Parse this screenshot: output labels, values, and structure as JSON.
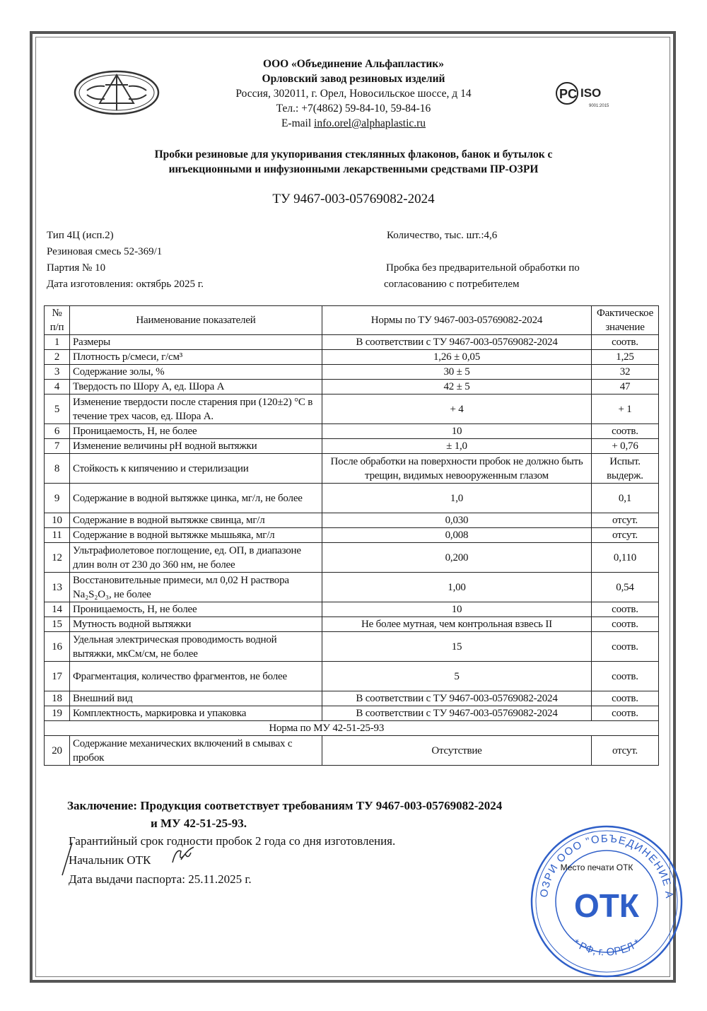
{
  "header": {
    "company": "ООО «Объединение Альфапластик»",
    "plant": "Орловский завод резиновых изделий",
    "address": "Россия, 302011, г. Орел, Новосильское шоссе, д 14",
    "phone": "Тел.: +7(4862) 59-84-10, 59-84-16",
    "email_label": "E-mail ",
    "email": "info.orel@alphaplastic.ru",
    "iso_logo": {
      "text": "ISO",
      "sub": "9001:2015"
    }
  },
  "product_title": {
    "line1": "Пробки резиновые для укупоривания стеклянных флаконов, банок и бутылок с",
    "line2": "инъекционными и инфузионными лекарственными средствами ПР-ОЗРИ"
  },
  "spec": "ТУ 9467-003-05769082-2024",
  "meta": {
    "type": "Тип 4Ц (исп.2)",
    "mix": "Резиновая смесь 52-369/1",
    "batch": "Партия № 10",
    "date": "Дата изготовления: октябрь  2025 г.",
    "quantity": "Количество, тыс. шт.:4,6",
    "note_line1": "Пробка без предварительной обработки по",
    "note_line2": "согласованию с потребителем"
  },
  "table": {
    "headers": {
      "num_line1": "№",
      "num_line2": "п/п",
      "name": "Наименование показателей",
      "norm": "Нормы по ТУ 9467-003-05769082-2024",
      "actual_line1": "Фактическое",
      "actual_line2": "значение"
    },
    "rows": [
      {
        "n": "1",
        "name": "Размеры",
        "norm": "В соответствии с ТУ 9467-003-05769082-2024",
        "actual": "соотв."
      },
      {
        "n": "2",
        "name": "Плотность р/смеси, г/см³",
        "norm": "1,26 ± 0,05",
        "actual": "1,25"
      },
      {
        "n": "3",
        "name": "Содержание золы, %",
        "norm": "30 ± 5",
        "actual": "32"
      },
      {
        "n": "4",
        "name": "Твердость по Шору А, ед. Шора А",
        "norm": "42 ± 5",
        "actual": "47"
      },
      {
        "n": "5",
        "name": "Изменение твердости после старения при (120±2) °С в течение трех часов, ед. Шора А.",
        "norm": "+ 4",
        "actual": "+ 1"
      },
      {
        "n": "6",
        "name": "Проницаемость, Н, не более",
        "norm": "10",
        "actual": "соотв."
      },
      {
        "n": "7",
        "name": "Изменение величины pH водной вытяжки",
        "norm": "± 1,0",
        "actual": "+ 0,76"
      },
      {
        "n": "8",
        "name": "Стойкость к кипячению и стерилизации",
        "norm": "После обработки на поверхности пробок не должно быть трещин, видимых невооруженным глазом",
        "actual": "Испыт. выдерж."
      },
      {
        "n": "9",
        "name": "Содержание в водной вытяжке цинка, мг/л, не более",
        "norm": "1,0",
        "actual": "0,1"
      },
      {
        "n": "10",
        "name": "Содержание в водной вытяжке свинца, мг/л",
        "norm": "0,030",
        "actual": "отсут."
      },
      {
        "n": "11",
        "name": "Содержание в водной вытяжке мышьяка, мг/л",
        "norm": "0,008",
        "actual": "отсут."
      },
      {
        "n": "12",
        "name": "Ультрафиолетовое поглощение, ед. ОП, в диапазоне длин волн от 230 до 360 нм, не более",
        "norm": "0,200",
        "actual": "0,110"
      },
      {
        "n": "13",
        "name": "Восстановительные примеси, мл 0,02 Н раствора Na₂S₂O₃, не более",
        "norm": "1,00",
        "actual": "0,54"
      },
      {
        "n": "14",
        "name": "Проницаемость, Н, не более",
        "norm": "10",
        "actual": "соотв."
      },
      {
        "n": "15",
        "name": "Мутность водной вытяжки",
        "norm": "Не более мутная, чем контрольная взвесь II",
        "actual": "соотв."
      },
      {
        "n": "16",
        "name": "Удельная электрическая проводимость водной вытяжки, мкСм/см, не более",
        "norm": "15",
        "actual": "соотв."
      },
      {
        "n": "17",
        "name": "Фрагментация, количество фрагментов, не более",
        "norm": "5",
        "actual": "соотв."
      },
      {
        "n": "18",
        "name": "Внешний вид",
        "norm": "В соответствии с ТУ 9467-003-05769082-2024",
        "actual": "соотв."
      },
      {
        "n": "19",
        "name": "Комплектность, маркировка и упаковка",
        "norm": "В соответствии с ТУ 9467-003-05769082-2024",
        "actual": "соотв."
      }
    ],
    "section_label": "Норма по МУ 42-51-25-93",
    "row20": {
      "n": "20",
      "name": "Содержание механических включений в смывах с пробок",
      "norm": "Отсутствие",
      "actual": "отсут."
    }
  },
  "conclusion": {
    "line1": "Заключение: Продукция соответствует требованиям ТУ 9467-003-05769082-2024",
    "line2": "и МУ 42-51-25-93."
  },
  "footer": {
    "warranty": "Гарантийный срок годности пробок 2 года со дня изготовления.",
    "chief": "Начальник ОТК",
    "issue_date": "Дата выдачи паспорта:  25.11.2025 г.",
    "stamp_place": "Место печати ОТК"
  },
  "stamp": {
    "ring_text": "ОЗРИ ООО \"ОБЪЕДИНЕНИЕ АЛЬФАПЛАСТИК\"",
    "bottom_text": "* РФ, г. ОРЕЛ *",
    "center": "ОТК",
    "color": "#2f5fc8"
  }
}
